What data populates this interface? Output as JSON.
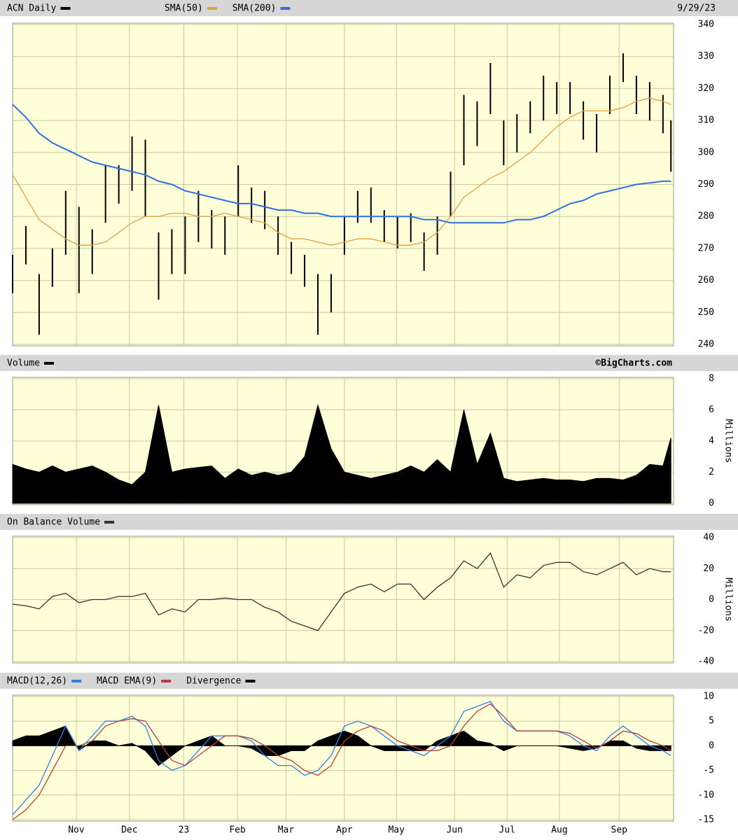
{
  "chart_data": [
    {
      "type": "ohlc",
      "title": "ACN Daily",
      "date": "9/29/23",
      "color": "#000000",
      "x": [
        0,
        5,
        10,
        15,
        20,
        25,
        30,
        35,
        40,
        45,
        50,
        55,
        60,
        65,
        70,
        75,
        80,
        85,
        90,
        95,
        100,
        105,
        110,
        115,
        120,
        125,
        130,
        135,
        140,
        145,
        150,
        155,
        160,
        165,
        170,
        175,
        180,
        185,
        190,
        195,
        200,
        205,
        210,
        215,
        220,
        225,
        230,
        235,
        240,
        245,
        248
      ],
      "xlim": [
        0,
        249
      ],
      "xticks": [
        {
          "value": 24,
          "label": "Nov"
        },
        {
          "value": 44,
          "label": "Dec"
        },
        {
          "value": 64.5,
          "label": "23"
        },
        {
          "value": 84.7,
          "label": "Feb"
        },
        {
          "value": 103,
          "label": "Mar"
        },
        {
          "value": 125,
          "label": "Apr"
        },
        {
          "value": 144.6,
          "label": "May"
        },
        {
          "value": 166.5,
          "label": "Jun"
        },
        {
          "value": 186.3,
          "label": "Jul"
        },
        {
          "value": 206,
          "label": "Aug"
        },
        {
          "value": 228.5,
          "label": "Sep"
        }
      ],
      "high": [
        268,
        277,
        262,
        270,
        288,
        283,
        276,
        296,
        296,
        305,
        304,
        275,
        276,
        280,
        288,
        282,
        280,
        296,
        289,
        288,
        280,
        272,
        268,
        262,
        262,
        280,
        288,
        289,
        282,
        280,
        281,
        275,
        280,
        294,
        318,
        316,
        328,
        310,
        312,
        316,
        324,
        322,
        322,
        316,
        312,
        324,
        331,
        324,
        322,
        318,
        310
      ],
      "low": [
        256,
        265,
        243,
        258,
        268,
        256,
        262,
        278,
        284,
        288,
        280,
        254,
        262,
        262,
        272,
        270,
        268,
        280,
        278,
        276,
        268,
        262,
        258,
        243,
        250,
        268,
        278,
        278,
        272,
        270,
        272,
        263,
        268,
        280,
        296,
        302,
        312,
        296,
        300,
        306,
        310,
        312,
        312,
        304,
        300,
        312,
        322,
        312,
        310,
        306,
        294
      ],
      "lines": [
        {
          "name": "SMA(50)",
          "color": "#e0a040",
          "values": [
            293,
            286,
            279,
            276,
            273,
            271,
            271,
            272,
            275,
            278,
            280,
            280,
            281,
            281,
            280,
            280,
            281,
            280,
            279,
            278,
            275,
            273,
            273,
            272,
            271,
            272,
            273,
            273,
            272,
            271,
            271,
            272,
            275,
            280,
            286,
            289,
            292,
            294,
            297,
            300,
            304,
            308,
            311,
            313,
            313,
            313,
            314,
            316,
            317,
            316,
            315
          ]
        },
        {
          "name": "SMA(200)",
          "color": "#2f6fe0",
          "values": [
            315,
            311,
            306,
            303,
            301,
            299,
            297,
            296,
            295,
            294,
            293,
            291,
            290,
            288,
            287,
            286,
            285,
            284,
            284,
            283,
            282,
            282,
            281,
            281,
            280,
            280,
            280,
            280,
            280,
            280,
            280,
            279,
            279,
            278,
            278,
            278,
            278,
            278,
            279,
            279,
            280,
            282,
            284,
            285,
            287,
            288,
            289,
            290,
            290.5,
            291,
            291
          ]
        }
      ],
      "ylim": [
        240,
        340
      ],
      "yticks": [
        240,
        250,
        260,
        270,
        280,
        290,
        300,
        310,
        320,
        330,
        340
      ],
      "grid": true
    },
    {
      "type": "area",
      "title": "Volume",
      "credit": "©BigCharts.com",
      "y_label": "Millions",
      "color": "#000000",
      "values": [
        2.5,
        2.2,
        2.0,
        2.4,
        2.0,
        2.2,
        2.4,
        2.0,
        1.5,
        1.2,
        2.0,
        6.3,
        2.0,
        2.2,
        2.3,
        2.4,
        1.6,
        2.2,
        1.8,
        2.0,
        1.8,
        2.0,
        3.0,
        6.3,
        3.5,
        2.0,
        1.8,
        1.6,
        1.8,
        2.0,
        2.4,
        2.0,
        2.8,
        2.0,
        6.0,
        2.5,
        4.5,
        1.6,
        1.4,
        1.5,
        1.6,
        1.5,
        1.5,
        1.4,
        1.6,
        1.6,
        1.5,
        1.8,
        2.5,
        2.4,
        4.2
      ],
      "ylim": [
        0,
        8
      ],
      "yticks": [
        0,
        2,
        4,
        6,
        8
      ],
      "grid": true
    },
    {
      "type": "line",
      "title": "On Balance Volume",
      "y_label": "Millions",
      "color": "#333333",
      "values": [
        -3,
        -4,
        -6,
        2,
        4,
        -2,
        0,
        0,
        2,
        2,
        4,
        -10,
        -6,
        -8,
        0,
        0,
        1,
        0,
        0,
        -5,
        -8,
        -14,
        -17,
        -20,
        -8,
        4,
        8,
        10,
        5,
        10,
        10,
        0,
        8,
        14,
        25,
        20,
        30,
        8,
        16,
        14,
        22,
        24,
        24,
        18,
        16,
        20,
        24,
        16,
        20,
        18,
        18
      ],
      "ylim": [
        -40,
        40
      ],
      "yticks": [
        -40,
        -20,
        0,
        20,
        40
      ],
      "grid": true
    },
    {
      "type": "macd",
      "series": [
        {
          "name": "MACD(12,26)",
          "color": "#2f7fe8",
          "values": [
            -14,
            -11,
            -8,
            -2,
            4,
            -1,
            2,
            5,
            5,
            6,
            4,
            -3,
            -5,
            -4,
            -1,
            2,
            2,
            2,
            1,
            -2,
            -4,
            -4,
            -6,
            -5,
            -2,
            4,
            5,
            4,
            2,
            0,
            -1,
            -2,
            0,
            2,
            7,
            8,
            9,
            5,
            3,
            3,
            3,
            3,
            2,
            0,
            -1,
            2,
            4,
            2,
            0,
            -1,
            -2
          ]
        },
        {
          "name": "MACD EMA(9)",
          "color": "#b04040",
          "values": [
            -15,
            -13,
            -10,
            -5,
            0,
            0,
            1,
            4,
            5,
            5.5,
            5,
            1,
            -3,
            -4,
            -2,
            0,
            2,
            2,
            1.5,
            0,
            -2,
            -3,
            -5,
            -6,
            -4,
            1,
            3,
            4,
            3,
            1,
            0,
            -1,
            -1,
            0,
            4,
            7,
            8.5,
            6,
            3,
            3,
            3,
            3,
            2.5,
            1,
            -0.5,
            1,
            3,
            2.5,
            1,
            0,
            -1
          ]
        },
        {
          "name": "Divergence",
          "color": "#000000",
          "values": [
            1,
            2,
            2,
            3,
            4,
            -1,
            1,
            1,
            0,
            0.5,
            -1,
            -4,
            -2,
            0,
            1,
            2,
            0,
            0,
            -0.5,
            -2,
            -2,
            -1,
            -1,
            1,
            2,
            3,
            2,
            0,
            -1,
            -1,
            -1,
            -1,
            1,
            2,
            3,
            1,
            0.5,
            -1,
            0,
            0,
            0,
            0,
            -0.5,
            -1,
            -0.5,
            1,
            1,
            -0.5,
            -1,
            -1,
            -1
          ]
        }
      ],
      "ylim": [
        -15,
        10
      ],
      "yticks": [
        -15,
        -10,
        -5,
        0,
        5,
        10
      ],
      "grid": true
    }
  ]
}
